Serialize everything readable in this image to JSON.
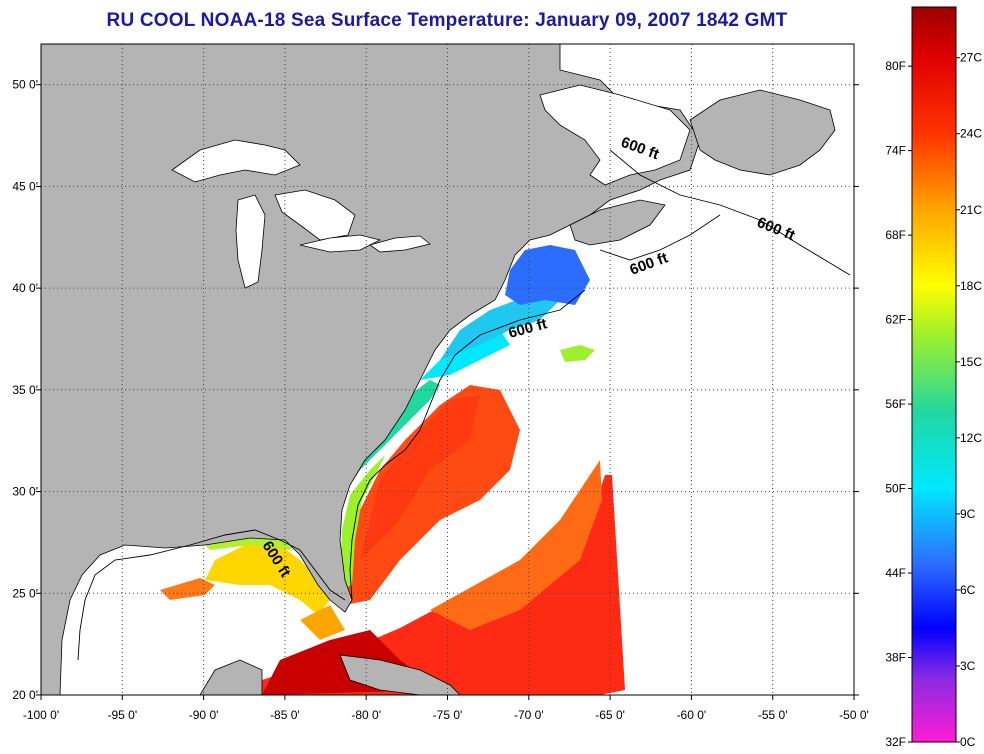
{
  "title": "RU COOL  NOAA-18  Sea Surface Temperature:  January 09, 2007 1842 GMT",
  "map": {
    "lon_range": [
      -100,
      -50
    ],
    "lat_range": [
      20,
      52
    ],
    "x_ticks": [
      {
        "lon": -100,
        "label": "-100 0'"
      },
      {
        "lon": -95,
        "label": "-95 0'"
      },
      {
        "lon": -90,
        "label": "-90 0'"
      },
      {
        "lon": -85,
        "label": "-85 0'"
      },
      {
        "lon": -80,
        "label": "-80 0'"
      },
      {
        "lon": -75,
        "label": "-75 0'"
      },
      {
        "lon": -70,
        "label": "-70 0'"
      },
      {
        "lon": -65,
        "label": "-65 0'"
      },
      {
        "lon": -60,
        "label": "-60 0'"
      },
      {
        "lon": -55,
        "label": "-55 0'"
      },
      {
        "lon": -50,
        "label": "-50 0'"
      }
    ],
    "y_ticks": [
      {
        "lat": 50,
        "label": "50 0'"
      },
      {
        "lat": 45,
        "label": "45 0'"
      },
      {
        "lat": 40,
        "label": "40 0'"
      },
      {
        "lat": 35,
        "label": "35 0'"
      },
      {
        "lat": 30,
        "label": "30 0'"
      },
      {
        "lat": 25,
        "label": "25 0'"
      },
      {
        "lat": 20,
        "label": "20 0'"
      }
    ],
    "contour_labels": [
      "600 ft",
      "600 ft",
      "600 ft",
      "600 ft",
      "600 ft"
    ],
    "land_color": "#b4b4b4",
    "no_data_color": "#ffffff"
  },
  "colorbar": {
    "celsius_min": 0,
    "celsius_max": 29,
    "fahrenheit_labels": [
      {
        "f": 32,
        "label": "32F"
      },
      {
        "f": 38,
        "label": "38F"
      },
      {
        "f": 44,
        "label": "44F"
      },
      {
        "f": 50,
        "label": "50F"
      },
      {
        "f": 56,
        "label": "56F"
      },
      {
        "f": 62,
        "label": "62F"
      },
      {
        "f": 68,
        "label": "68F"
      },
      {
        "f": 74,
        "label": "74F"
      },
      {
        "f": 80,
        "label": "80F"
      }
    ],
    "celsius_labels": [
      {
        "c": 0,
        "label": "0C"
      },
      {
        "c": 3,
        "label": "3C"
      },
      {
        "c": 6,
        "label": "6C"
      },
      {
        "c": 9,
        "label": "9C"
      },
      {
        "c": 12,
        "label": "12C"
      },
      {
        "c": 15,
        "label": "15C"
      },
      {
        "c": 18,
        "label": "18C"
      },
      {
        "c": 21,
        "label": "21C"
      },
      {
        "c": 24,
        "label": "24C"
      },
      {
        "c": 27,
        "label": "27C"
      }
    ],
    "color_stops": [
      {
        "c": 0,
        "color": "#ff1cd6"
      },
      {
        "c": 2.5,
        "color": "#8a2be2"
      },
      {
        "c": 4.5,
        "color": "#0000ff"
      },
      {
        "c": 7,
        "color": "#2c6cff"
      },
      {
        "c": 10,
        "color": "#00e8ff"
      },
      {
        "c": 13,
        "color": "#20d8a0"
      },
      {
        "c": 16,
        "color": "#9cf02c"
      },
      {
        "c": 18,
        "color": "#ffff00"
      },
      {
        "c": 21,
        "color": "#ffa500"
      },
      {
        "c": 24,
        "color": "#ff3300"
      },
      {
        "c": 27,
        "color": "#e00000"
      },
      {
        "c": 29,
        "color": "#9c0000"
      }
    ]
  }
}
